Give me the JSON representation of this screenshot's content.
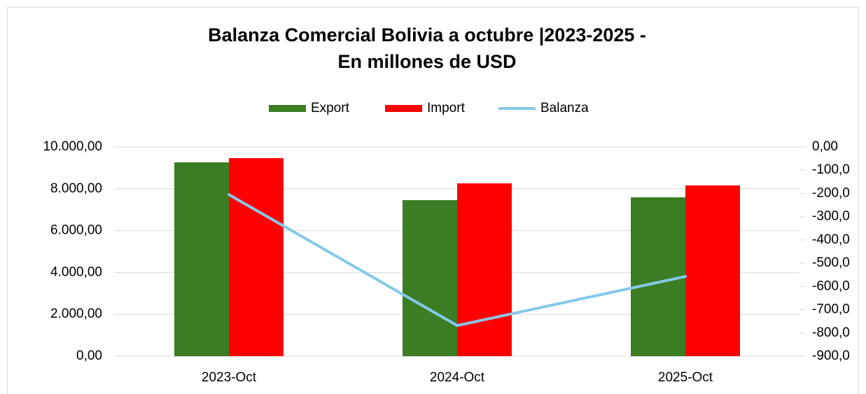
{
  "chart_data": {
    "type": "bar",
    "title": [
      "Balanza Comercial Bolivia a octubre |2023-2025 -",
      "En millones de USD"
    ],
    "categories": [
      "2023-Oct",
      "2024-Oct",
      "2025-Oct"
    ],
    "series": [
      {
        "name": "Export",
        "color": "#3b7d23",
        "type": "bar",
        "values": [
          9264,
          7458,
          7592
        ]
      },
      {
        "name": "Import",
        "color": "#ff0000",
        "type": "bar",
        "values": [
          9465,
          8261,
          8161
        ]
      },
      {
        "name": "Balanza",
        "color": "#86c8e8",
        "type": "line",
        "axis": "y2",
        "values": [
          -205,
          -768,
          -557
        ]
      }
    ],
    "ylim": [
      0,
      10000
    ],
    "yticks": [
      {
        "value": 0,
        "label": "0,00"
      },
      {
        "value": 2000,
        "label": "2.000,00"
      },
      {
        "value": 4000,
        "label": "4.000,00"
      },
      {
        "value": 6000,
        "label": "6.000,00"
      },
      {
        "value": 8000,
        "label": "8.000,00"
      },
      {
        "value": 10000,
        "label": "10.000,00"
      }
    ],
    "y2lim": [
      -900,
      0
    ],
    "y2ticks": [
      {
        "value": 0,
        "label": "0,00"
      },
      {
        "value": -100,
        "label": "-100,0"
      },
      {
        "value": -200,
        "label": "-200,0"
      },
      {
        "value": -300,
        "label": "-300,0"
      },
      {
        "value": -400,
        "label": "-400,0"
      },
      {
        "value": -500,
        "label": "-500,0"
      },
      {
        "value": -600,
        "label": "-600,0"
      },
      {
        "value": -700,
        "label": "-700,0"
      },
      {
        "value": -800,
        "label": "-800,0"
      },
      {
        "value": -900,
        "label": "-900,0"
      }
    ],
    "grid": true,
    "legend": "top"
  }
}
